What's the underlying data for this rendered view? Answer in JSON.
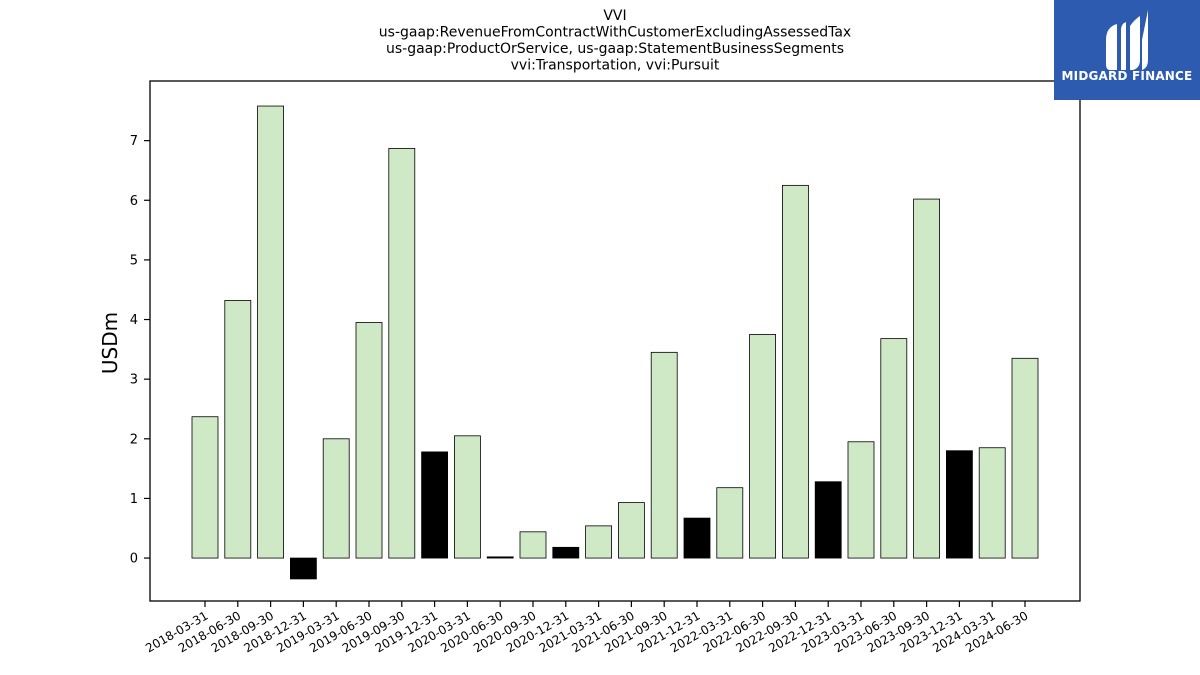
{
  "chart_data": {
    "type": "bar",
    "title_lines": [
      "VVI",
      "us-gaap:RevenueFromContractWithCustomerExcludingAssessedTax",
      "us-gaap:ProductOrService, us-gaap:StatementBusinessSegments",
      "vvi:Transportation, vvi:Pursuit"
    ],
    "xlabel": "",
    "ylabel": "USDm",
    "ylim": [
      -0.72,
      8.0
    ],
    "yticks": [
      0,
      1,
      2,
      3,
      4,
      5,
      6,
      7
    ],
    "grid": false,
    "legend": "none",
    "categories": [
      "2018-03-31",
      "2018-06-30",
      "2018-09-30",
      "2018-12-31",
      "2019-03-31",
      "2019-06-30",
      "2019-09-30",
      "2019-12-31",
      "2020-03-31",
      "2020-06-30",
      "2020-09-30",
      "2020-12-31",
      "2021-03-31",
      "2021-06-30",
      "2021-09-30",
      "2021-12-31",
      "2022-03-31",
      "2022-06-30",
      "2022-09-30",
      "2022-12-31",
      "2023-03-31",
      "2023-06-30",
      "2023-09-30",
      "2023-12-31",
      "2024-03-31",
      "2024-06-30"
    ],
    "values": [
      2.37,
      4.32,
      7.58,
      -0.35,
      2.0,
      3.95,
      6.87,
      1.78,
      2.05,
      0.02,
      0.44,
      0.18,
      0.54,
      0.93,
      3.45,
      0.67,
      1.18,
      3.75,
      6.25,
      1.28,
      1.95,
      3.68,
      6.02,
      1.8,
      1.85,
      3.35
    ],
    "highlighted_categories": [
      "2018-12-31",
      "2019-12-31",
      "2020-06-30",
      "2020-12-31",
      "2021-12-31",
      "2022-12-31",
      "2023-12-31"
    ],
    "colors": {
      "bar_fill": "#cfe9c6",
      "highlight_fill": "#000000",
      "bar_edge": "#000000"
    }
  },
  "logo": {
    "text": "MIDGARD FINANCE",
    "background": "#2d5bb0",
    "foreground": "#ffffff"
  }
}
